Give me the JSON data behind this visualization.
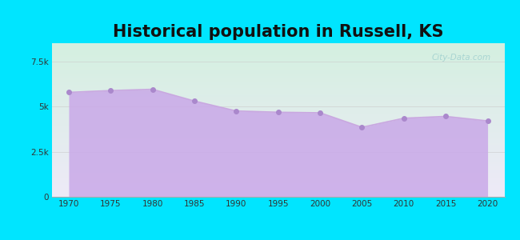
{
  "title": "Historical population in Russell, KS",
  "title_fontsize": 15,
  "title_fontweight": "bold",
  "years": [
    1970,
    1975,
    1980,
    1985,
    1990,
    1995,
    2000,
    2005,
    2010,
    2015,
    2020
  ],
  "population": [
    5780,
    5880,
    5950,
    5300,
    4750,
    4680,
    4650,
    3850,
    4350,
    4450,
    4200
  ],
  "ylim": [
    0,
    8500
  ],
  "yticks": [
    0,
    2500,
    5000,
    7500
  ],
  "ytick_labels": [
    "0",
    "2.5k",
    "5k",
    "7.5k"
  ],
  "xtick_labels": [
    "1970",
    "1975",
    "1980",
    "1985",
    "1990",
    "1995",
    "2000",
    "2005",
    "2010",
    "2015",
    "2020"
  ],
  "line_color": "#c9a8e0",
  "fill_color": "#c9a8e8",
  "fill_alpha": 0.85,
  "marker_color": "#aa88cc",
  "marker_size": 4,
  "bg_outer": "#00e5ff",
  "bg_plot_topleft": "#d8f5e8",
  "bg_plot_topright": "#eef8f8",
  "bg_plot_bottom": "#f0eaf8",
  "grid_color": "#cccccc",
  "watermark": "City-Data.com",
  "watermark_color": "#99cccc"
}
